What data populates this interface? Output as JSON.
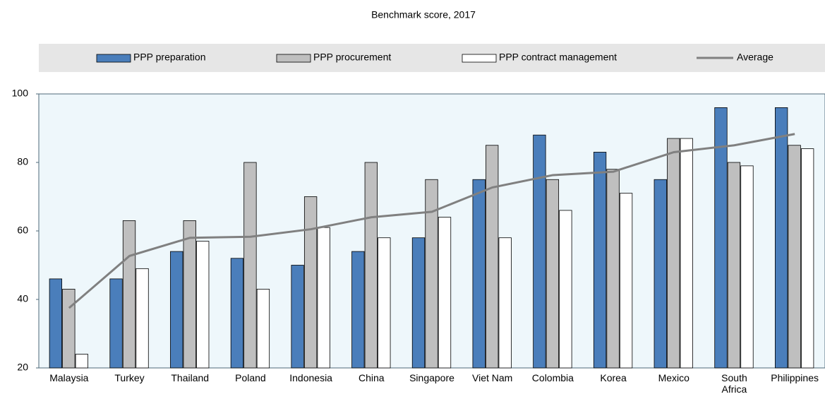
{
  "chart_data": {
    "type": "bar",
    "title": "Benchmark score, 2017",
    "categories": [
      "Malaysia",
      "Turkey",
      "Thailand",
      "Poland",
      "Indonesia",
      "China",
      "Singapore",
      "Viet Nam",
      "Colombia",
      "Korea",
      "Mexico",
      "South Africa",
      "Philippines"
    ],
    "series": [
      {
        "name": "PPP preparation",
        "color": "#4a7ebb",
        "values": [
          46,
          46,
          54,
          52,
          50,
          54,
          58,
          75,
          88,
          83,
          75,
          96,
          96
        ]
      },
      {
        "name": "PPP procurement",
        "color": "#bfbfbf",
        "values": [
          43,
          63,
          63,
          80,
          70,
          80,
          75,
          85,
          75,
          78,
          87,
          80,
          85
        ]
      },
      {
        "name": "PPP contract management",
        "color": "#ffffff",
        "values": [
          24,
          49,
          57,
          43,
          61,
          58,
          64,
          58,
          66,
          71,
          87,
          79,
          84
        ]
      },
      {
        "name": "Average",
        "type": "line",
        "color": "#808080",
        "values": [
          37.5,
          52.7,
          58,
          58.3,
          60.5,
          64,
          65.6,
          72.7,
          76.3,
          77.3,
          83,
          85,
          88.3
        ]
      }
    ],
    "ylim": [
      20,
      100
    ],
    "yticks": [
      20,
      40,
      60,
      80,
      100
    ],
    "legend": "top"
  }
}
